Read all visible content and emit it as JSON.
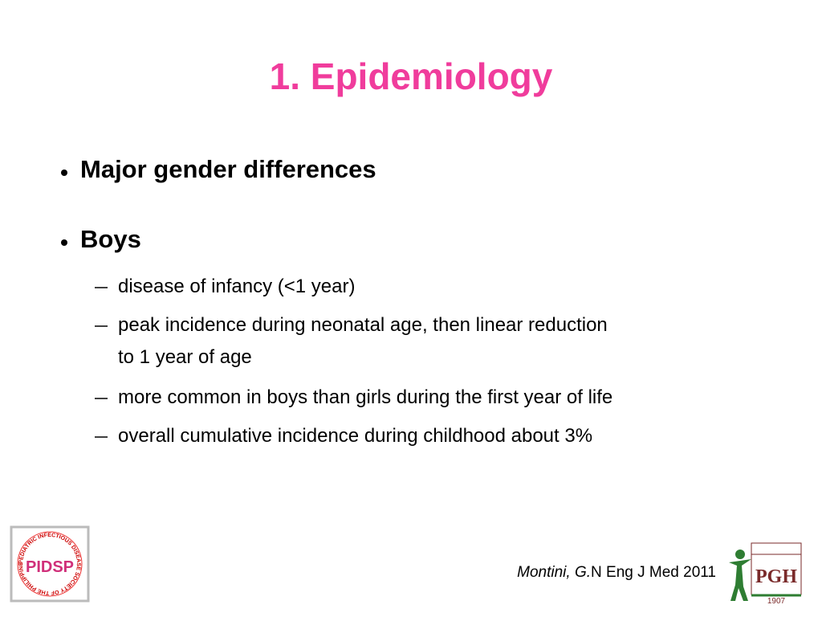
{
  "title": "1. Epidemiology",
  "bullets": [
    {
      "text": "Major gender differences"
    },
    {
      "text": "Boys",
      "items": [
        [
          "disease of infancy (<1 year)"
        ],
        [
          "peak incidence during neonatal age, then linear reduction",
          "to 1 year of age"
        ],
        [
          "more common in boys than girls during the first year of life"
        ],
        [
          "overall cumulative incidence during childhood about 3%"
        ]
      ]
    }
  ],
  "citation": {
    "author": "Montini, G.",
    "source": "N Eng J Med 2011"
  },
  "logos": {
    "left": {
      "text": "PIDSP",
      "ring": "PEDIATRIC INFECTIOUS DISEASE SOCIETY OF THE PHILIPPINES"
    },
    "right": {
      "text": "PGH",
      "year": "1907"
    }
  }
}
